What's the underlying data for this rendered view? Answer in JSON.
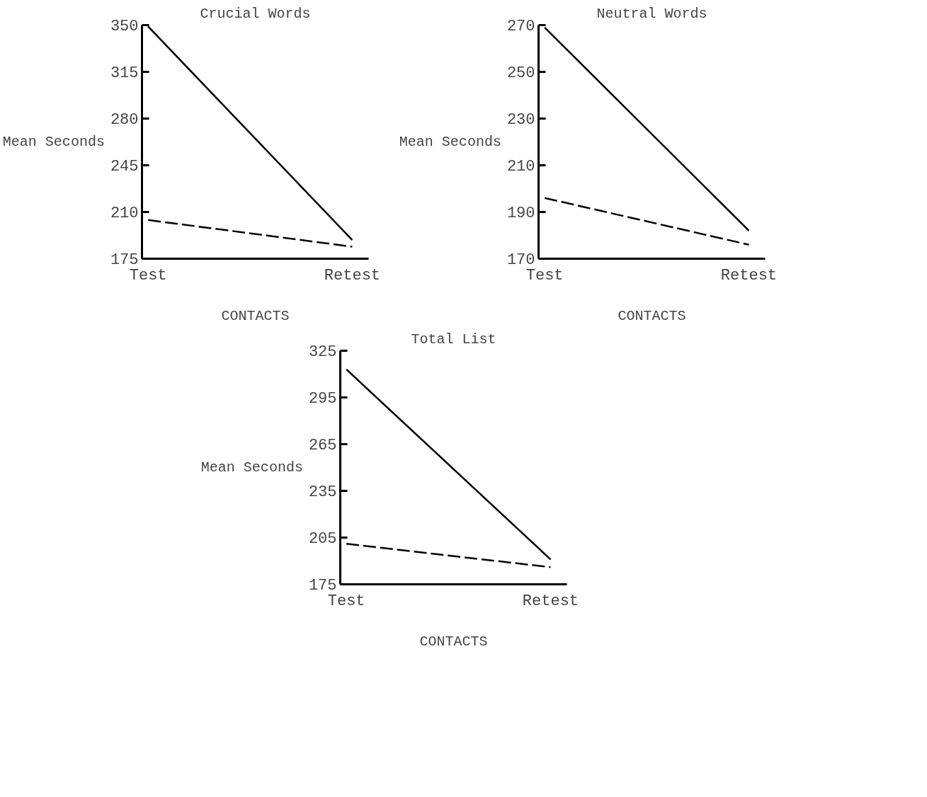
{
  "chart_data": [
    {
      "type": "line",
      "title": "Crucial Words",
      "xlabel": "CONTACTS",
      "ylabel": "Mean Seconds",
      "categories": [
        "Test",
        "Retest"
      ],
      "ylim": [
        175,
        350
      ],
      "yticks": [
        175,
        210,
        245,
        280,
        315,
        350
      ],
      "grid": false,
      "series": [
        {
          "color": "#000000",
          "line_style": "solid",
          "values": [
            349,
            189
          ]
        },
        {
          "color": "#000000",
          "line_style": "dashed",
          "values": [
            204,
            184
          ]
        }
      ]
    },
    {
      "type": "line",
      "title": "Neutral Words",
      "xlabel": "CONTACTS",
      "ylabel": "Mean Seconds",
      "categories": [
        "Test",
        "Retest"
      ],
      "ylim": [
        170,
        270
      ],
      "yticks": [
        170,
        190,
        210,
        230,
        250,
        270
      ],
      "grid": false,
      "series": [
        {
          "color": "#000000",
          "line_style": "solid",
          "values": [
            269,
            182
          ]
        },
        {
          "color": "#000000",
          "line_style": "dashed",
          "values": [
            196,
            176
          ]
        }
      ]
    },
    {
      "type": "line",
      "title": "Total List",
      "xlabel": "CONTACTS",
      "ylabel": "Mean Seconds",
      "categories": [
        "Test",
        "Retest"
      ],
      "ylim": [
        175,
        325
      ],
      "yticks": [
        175,
        205,
        235,
        265,
        295,
        325
      ],
      "grid": false,
      "series": [
        {
          "color": "#000000",
          "line_style": "solid",
          "values": [
            313,
            191
          ]
        },
        {
          "color": "#000000",
          "line_style": "dashed",
          "values": [
            201,
            186
          ]
        }
      ]
    }
  ]
}
